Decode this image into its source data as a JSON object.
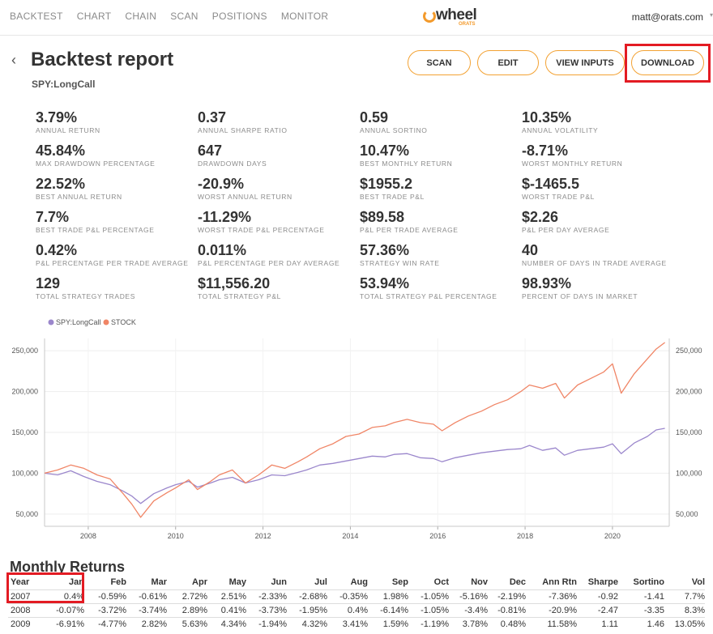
{
  "nav": {
    "links": [
      "BACKTEST",
      "CHART",
      "CHAIN",
      "SCAN",
      "POSITIONS",
      "MONITOR"
    ],
    "logo_text": "wheel",
    "logo_sub": "ORATS",
    "user_email": "matt@orats.com"
  },
  "header": {
    "title": "Backtest report",
    "subtitle": "SPY:LongCall",
    "buttons": {
      "scan": "SCAN",
      "edit": "EDIT",
      "view_inputs": "VIEW INPUTS",
      "download": "DOWNLOAD"
    }
  },
  "stats": [
    [
      {
        "value": "3.79%",
        "label": "ANNUAL RETURN"
      },
      {
        "value": "0.37",
        "label": "ANNUAL SHARPE RATIO"
      },
      {
        "value": "0.59",
        "label": "ANNUAL SORTINO"
      },
      {
        "value": "10.35%",
        "label": "ANNUAL VOLATILITY"
      }
    ],
    [
      {
        "value": "45.84%",
        "label": "MAX DRAWDOWN PERCENTAGE"
      },
      {
        "value": "647",
        "label": "DRAWDOWN DAYS"
      },
      {
        "value": "10.47%",
        "label": "BEST MONTHLY RETURN"
      },
      {
        "value": "-8.71%",
        "label": "WORST MONTHLY RETURN"
      }
    ],
    [
      {
        "value": "22.52%",
        "label": "BEST ANNUAL RETURN"
      },
      {
        "value": "-20.9%",
        "label": "WORST ANNUAL RETURN"
      },
      {
        "value": "$1955.2",
        "label": "BEST TRADE P&L"
      },
      {
        "value": "$-1465.5",
        "label": "WORST TRADE P&L"
      }
    ],
    [
      {
        "value": "7.7%",
        "label": "BEST TRADE P&L PERCENTAGE"
      },
      {
        "value": "-11.29%",
        "label": "WORST TRADE P&L PERCENTAGE"
      },
      {
        "value": "$89.58",
        "label": "P&L PER TRADE AVERAGE"
      },
      {
        "value": "$2.26",
        "label": "P&L PER DAY AVERAGE"
      }
    ],
    [
      {
        "value": "0.42%",
        "label": "P&L PERCENTAGE PER TRADE AVERAGE"
      },
      {
        "value": "0.011%",
        "label": "P&L PERCENTAGE PER DAY AVERAGE"
      },
      {
        "value": "57.36%",
        "label": "STRATEGY WIN RATE"
      },
      {
        "value": "40",
        "label": "NUMBER OF DAYS IN TRADE AVERAGE"
      }
    ],
    [
      {
        "value": "129",
        "label": "TOTAL STRATEGY TRADES"
      },
      {
        "value": "$11,556.20",
        "label": "TOTAL STRATEGY P&L"
      },
      {
        "value": "53.94%",
        "label": "TOTAL STRATEGY P&L PERCENTAGE"
      },
      {
        "value": "98.93%",
        "label": "PERCENT OF DAYS IN MARKET"
      }
    ]
  ],
  "colors": {
    "accent": "#f3a233",
    "highlight": "#e31b23",
    "strategy": "#9b87cc",
    "stock": "#f08566"
  },
  "chart_data": {
    "type": "line",
    "legend_position": "top-left",
    "grid": true,
    "x_ticks": [
      "2008",
      "2010",
      "2012",
      "2014",
      "2016",
      "2018",
      "2020"
    ],
    "y_ticks": [
      "50,000",
      "100,000",
      "150,000",
      "200,000",
      "250,000"
    ],
    "xlim": [
      2007.0,
      2021.3
    ],
    "ylim": [
      35000,
      265000
    ],
    "series": [
      {
        "name": "SPY:LongCall",
        "color": "#9b87cc",
        "points": [
          [
            2007.0,
            100000
          ],
          [
            2007.3,
            98000
          ],
          [
            2007.6,
            103000
          ],
          [
            2007.9,
            96000
          ],
          [
            2008.2,
            90000
          ],
          [
            2008.5,
            86000
          ],
          [
            2008.8,
            78000
          ],
          [
            2009.0,
            72000
          ],
          [
            2009.2,
            63000
          ],
          [
            2009.5,
            75000
          ],
          [
            2009.8,
            82000
          ],
          [
            2010.0,
            86000
          ],
          [
            2010.3,
            90000
          ],
          [
            2010.5,
            83000
          ],
          [
            2010.8,
            88000
          ],
          [
            2011.0,
            92000
          ],
          [
            2011.3,
            95000
          ],
          [
            2011.6,
            88000
          ],
          [
            2011.9,
            92000
          ],
          [
            2012.2,
            98000
          ],
          [
            2012.5,
            97000
          ],
          [
            2012.8,
            101000
          ],
          [
            2013.0,
            104000
          ],
          [
            2013.3,
            110000
          ],
          [
            2013.6,
            112000
          ],
          [
            2013.9,
            115000
          ],
          [
            2014.2,
            118000
          ],
          [
            2014.5,
            121000
          ],
          [
            2014.8,
            120000
          ],
          [
            2015.0,
            123000
          ],
          [
            2015.3,
            124000
          ],
          [
            2015.6,
            119000
          ],
          [
            2015.9,
            118000
          ],
          [
            2016.1,
            114000
          ],
          [
            2016.4,
            119000
          ],
          [
            2016.7,
            122000
          ],
          [
            2017.0,
            125000
          ],
          [
            2017.3,
            127000
          ],
          [
            2017.6,
            129000
          ],
          [
            2017.9,
            130000
          ],
          [
            2018.1,
            134000
          ],
          [
            2018.4,
            128000
          ],
          [
            2018.7,
            131000
          ],
          [
            2018.9,
            122000
          ],
          [
            2019.2,
            128000
          ],
          [
            2019.5,
            130000
          ],
          [
            2019.8,
            132000
          ],
          [
            2020.0,
            136000
          ],
          [
            2020.2,
            124000
          ],
          [
            2020.5,
            137000
          ],
          [
            2020.8,
            145000
          ],
          [
            2021.0,
            153000
          ],
          [
            2021.2,
            155000
          ]
        ]
      },
      {
        "name": "STOCK",
        "color": "#f08566",
        "points": [
          [
            2007.0,
            100000
          ],
          [
            2007.3,
            104000
          ],
          [
            2007.6,
            110000
          ],
          [
            2007.9,
            106000
          ],
          [
            2008.2,
            98000
          ],
          [
            2008.5,
            93000
          ],
          [
            2008.8,
            75000
          ],
          [
            2009.0,
            62000
          ],
          [
            2009.2,
            46000
          ],
          [
            2009.5,
            66000
          ],
          [
            2009.8,
            76000
          ],
          [
            2010.0,
            82000
          ],
          [
            2010.3,
            92000
          ],
          [
            2010.5,
            80000
          ],
          [
            2010.8,
            90000
          ],
          [
            2011.0,
            98000
          ],
          [
            2011.3,
            104000
          ],
          [
            2011.6,
            88000
          ],
          [
            2011.9,
            98000
          ],
          [
            2012.2,
            110000
          ],
          [
            2012.5,
            106000
          ],
          [
            2012.8,
            114000
          ],
          [
            2013.0,
            120000
          ],
          [
            2013.3,
            130000
          ],
          [
            2013.6,
            136000
          ],
          [
            2013.9,
            145000
          ],
          [
            2014.2,
            148000
          ],
          [
            2014.5,
            156000
          ],
          [
            2014.8,
            158000
          ],
          [
            2015.0,
            162000
          ],
          [
            2015.3,
            166000
          ],
          [
            2015.6,
            162000
          ],
          [
            2015.9,
            160000
          ],
          [
            2016.1,
            152000
          ],
          [
            2016.4,
            162000
          ],
          [
            2016.7,
            170000
          ],
          [
            2017.0,
            176000
          ],
          [
            2017.3,
            184000
          ],
          [
            2017.6,
            190000
          ],
          [
            2017.9,
            200000
          ],
          [
            2018.1,
            208000
          ],
          [
            2018.4,
            204000
          ],
          [
            2018.7,
            210000
          ],
          [
            2018.9,
            192000
          ],
          [
            2019.2,
            208000
          ],
          [
            2019.5,
            216000
          ],
          [
            2019.8,
            224000
          ],
          [
            2020.0,
            234000
          ],
          [
            2020.2,
            198000
          ],
          [
            2020.5,
            222000
          ],
          [
            2020.8,
            240000
          ],
          [
            2021.0,
            252000
          ],
          [
            2021.2,
            260000
          ]
        ]
      }
    ]
  },
  "monthly": {
    "title": "Monthly Returns",
    "columns": [
      "Year",
      "Jan",
      "Feb",
      "Mar",
      "Apr",
      "May",
      "Jun",
      "Jul",
      "Aug",
      "Sep",
      "Oct",
      "Nov",
      "Dec",
      "Ann Rtn",
      "Sharpe",
      "Sortino",
      "Vol"
    ],
    "rows": [
      [
        "2007",
        "0.4%",
        "-0.59%",
        "-0.61%",
        "2.72%",
        "2.51%",
        "-2.33%",
        "-2.68%",
        "-0.35%",
        "1.98%",
        "-1.05%",
        "-5.16%",
        "-2.19%",
        "-7.36%",
        "-0.92",
        "-1.41",
        "7.7%"
      ],
      [
        "2008",
        "-0.07%",
        "-3.72%",
        "-3.74%",
        "2.89%",
        "0.41%",
        "-3.73%",
        "-1.95%",
        "0.4%",
        "-6.14%",
        "-1.05%",
        "-3.4%",
        "-0.81%",
        "-20.9%",
        "-2.47",
        "-3.35",
        "8.3%"
      ],
      [
        "2009",
        "-6.91%",
        "-4.77%",
        "2.82%",
        "5.63%",
        "4.34%",
        "-1.94%",
        "4.32%",
        "3.41%",
        "1.59%",
        "-1.19%",
        "3.78%",
        "0.48%",
        "11.58%",
        "1.11",
        "1.46",
        "13.05%"
      ]
    ]
  }
}
